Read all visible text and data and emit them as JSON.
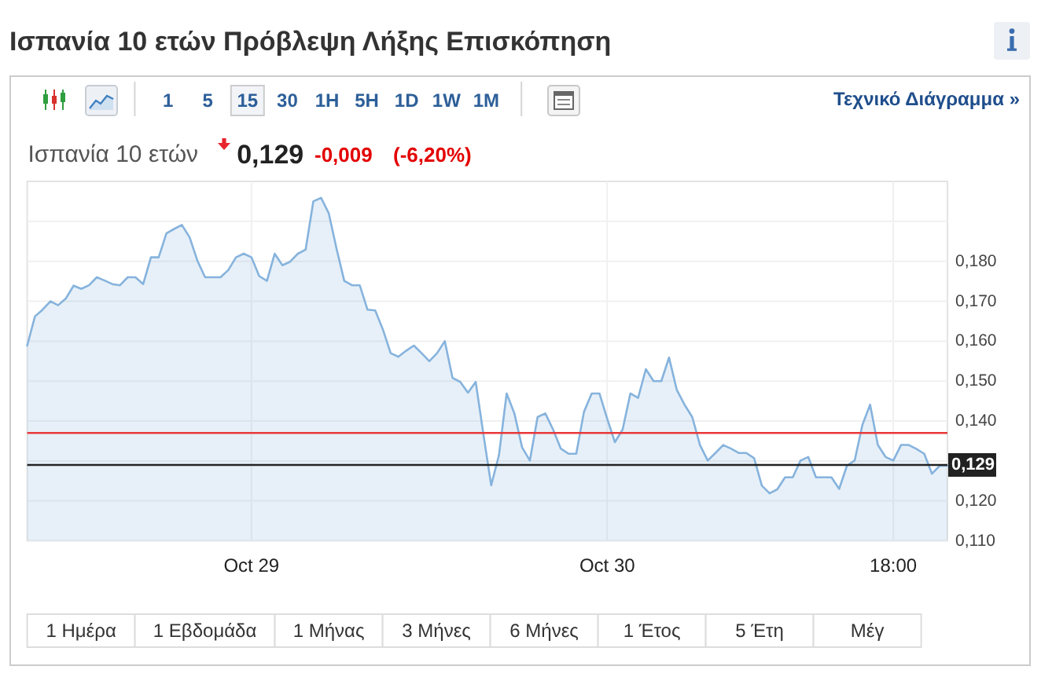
{
  "chart_data": {
    "type": "area",
    "title": "Ισπανία 10 ετών Πρόβλεψη Λήξης Επισκόπηση",
    "subtitle": "Ισπανία 10 ετών",
    "annotations": [
      "0,129",
      "-0,009",
      "(-6,20%)",
      "1",
      "5",
      "15",
      "30",
      "1H",
      "5H",
      "1D",
      "1W",
      "1M",
      "Τεχνικό Διάγραμμα »",
      "1 Ημέρα",
      "1 Εβδομάδα",
      "1 Μήνας",
      "3 Μήνες",
      "6 Μήνες",
      "1 Έτος",
      "5 Έτη",
      "Μέγ"
    ],
    "categories": [
      null,
      null,
      null,
      null,
      null,
      null,
      null,
      null,
      null,
      null,
      null,
      null,
      null,
      null,
      null,
      null,
      null,
      null,
      null,
      null,
      null,
      null,
      null,
      null,
      null,
      null,
      null,
      null,
      null,
      "Oct 29",
      null,
      null,
      null,
      null,
      null,
      null,
      null,
      null,
      null,
      null,
      null,
      null,
      null,
      null,
      null,
      null,
      null,
      null,
      null,
      null,
      null,
      null,
      null,
      null,
      null,
      null,
      null,
      null,
      null,
      null,
      null,
      null,
      null,
      null,
      null,
      null,
      null,
      null,
      null,
      null,
      null,
      null,
      null,
      null,
      null,
      "Oct 30",
      null,
      null,
      null,
      null,
      null,
      null,
      null,
      null,
      null,
      null,
      null,
      null,
      null,
      null,
      null,
      null,
      null,
      null,
      null,
      null,
      null,
      null,
      null,
      null,
      null,
      null,
      null,
      null,
      null,
      null,
      null,
      null,
      null,
      null,
      null,
      null,
      "18:00",
      null,
      null,
      null,
      null,
      null,
      null,
      null
    ],
    "values": [
      0.1589,
      0.1662,
      0.1679,
      0.17,
      0.169,
      0.1707,
      0.1739,
      0.1731,
      0.174,
      0.176,
      0.1752,
      0.1743,
      0.174,
      0.176,
      0.176,
      0.1743,
      0.181,
      0.181,
      0.187,
      0.1881,
      0.1891,
      0.186,
      0.1802,
      0.176,
      0.176,
      0.176,
      0.1778,
      0.181,
      0.1819,
      0.181,
      0.1763,
      0.1751,
      0.1819,
      0.179,
      0.1799,
      0.1819,
      0.1829,
      0.195,
      0.1959,
      0.192,
      0.1832,
      0.1751,
      0.174,
      0.174,
      0.1679,
      0.1677,
      0.1629,
      0.157,
      0.1561,
      0.1576,
      0.1589,
      0.157,
      0.155,
      0.157,
      0.16,
      0.1508,
      0.1498,
      0.1471,
      0.1498,
      0.1366,
      0.1239,
      0.1314,
      0.1469,
      0.1419,
      0.1334,
      0.1301,
      0.141,
      0.1419,
      0.1379,
      0.1331,
      0.1318,
      0.1318,
      0.1423,
      0.1469,
      0.1469,
      0.1406,
      0.1347,
      0.1379,
      0.1469,
      0.1458,
      0.153,
      0.15,
      0.15,
      0.1559,
      0.1478,
      0.1441,
      0.141,
      0.134,
      0.1301,
      0.132,
      0.134,
      0.1331,
      0.132,
      0.132,
      0.1307,
      0.1238,
      0.1219,
      0.1229,
      0.1259,
      0.1259,
      0.1301,
      0.131,
      0.1259,
      0.1259,
      0.1259,
      0.123,
      0.1288,
      0.1301,
      0.139,
      0.1441,
      0.134,
      0.131,
      0.1301,
      0.134,
      0.134,
      0.133,
      0.1318,
      0.1268,
      0.1288,
      0.1288
    ],
    "color": "#86b3dd",
    "ylim": [
      0.11,
      0.2
    ],
    "yticks": [
      {
        "value": 0.11,
        "label": "0,110"
      },
      {
        "value": 0.12,
        "label": "0,120"
      },
      {
        "value": 0.13,
        "label": null
      },
      {
        "value": 0.14,
        "label": "0,140"
      },
      {
        "value": 0.15,
        "label": "0,150"
      },
      {
        "value": 0.16,
        "label": "0,160"
      },
      {
        "value": 0.17,
        "label": "0,170"
      },
      {
        "value": 0.18,
        "label": "0,180"
      },
      {
        "value": 0.19,
        "label": null
      }
    ],
    "grid": true,
    "ref_lines": [
      {
        "axis": "y",
        "value": 0.137,
        "color": "#e8393a"
      },
      {
        "axis": "y",
        "value": 0.129,
        "label": "0,129",
        "color": "#222222"
      }
    ]
  }
}
